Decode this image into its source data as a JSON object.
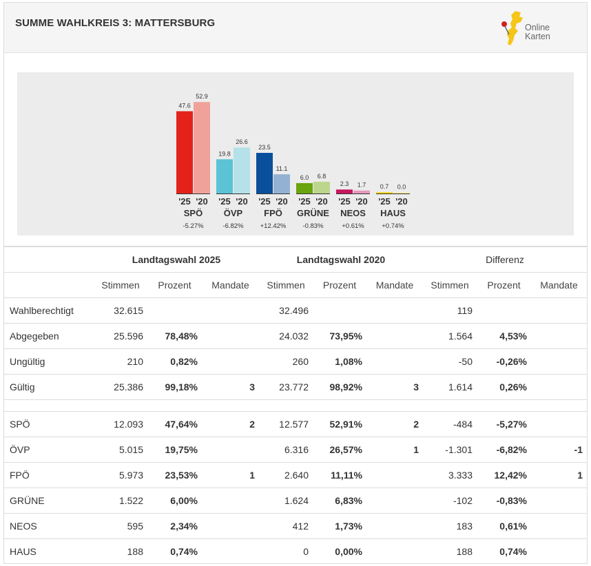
{
  "header": {
    "title": "SUMME WAHLKREIS 3: MATTERSBURG",
    "logo_line1": "Online",
    "logo_line2": "Karten",
    "logo_color": "#f5c518"
  },
  "chart_data": {
    "type": "bar",
    "title": "",
    "categories": [
      "SPÖ",
      "ÖVP",
      "FPÖ",
      "GRÜNE",
      "NEOS",
      "HAUS"
    ],
    "series": [
      {
        "name": "'25",
        "values": [
          47.6,
          19.8,
          23.5,
          6.0,
          2.3,
          0.7
        ]
      },
      {
        "name": "'20",
        "values": [
          52.9,
          26.6,
          11.1,
          6.8,
          1.7,
          0.0
        ]
      }
    ],
    "value_labels_25": [
      "47.6",
      "19.8",
      "23.5",
      "6.0",
      "2.3",
      "0.7"
    ],
    "value_labels_20": [
      "52.9",
      "26.6",
      "11.1",
      "6.8",
      "1.7",
      "0.0"
    ],
    "year_labels": [
      "'25",
      "'20"
    ],
    "diffs": [
      "-5.27%",
      "-6.82%",
      "+12.42%",
      "-0.83%",
      "+0.61%",
      "+0.74%"
    ],
    "colors_25": [
      "#e3231b",
      "#5bc3d3",
      "#0a4f9c",
      "#6aa40e",
      "#c8185c",
      "#f5d40a"
    ],
    "colors_20": [
      "#f0a29a",
      "#b5e1e8",
      "#93b2d3",
      "#bcd68c",
      "#e49bbb",
      "#f8e99b"
    ],
    "ylim": [
      0,
      60
    ],
    "xlabel": "",
    "ylabel": ""
  },
  "table": {
    "group_headers": [
      "Landtagswahl 2025",
      "Landtagswahl 2020",
      "Differenz"
    ],
    "sub_headers": [
      "Stimmen",
      "Prozent",
      "Mandate",
      "Stimmen",
      "Prozent",
      "Mandate",
      "Stimmen",
      "Prozent",
      "Mandate"
    ],
    "summary_rows": [
      {
        "label": "Wahlberechtigt",
        "cells": [
          "32.615",
          "",
          "",
          "32.496",
          "",
          "",
          "119",
          "",
          ""
        ]
      },
      {
        "label": "Abgegeben",
        "cells": [
          "25.596",
          "78,48%",
          "",
          "24.032",
          "73,95%",
          "",
          "1.564",
          "4,53%",
          ""
        ]
      },
      {
        "label": "Ungültig",
        "cells": [
          "210",
          "0,82%",
          "",
          "260",
          "1,08%",
          "",
          "-50",
          "-0,26%",
          ""
        ]
      },
      {
        "label": "Gültig",
        "cells": [
          "25.386",
          "99,18%",
          "3",
          "23.772",
          "98,92%",
          "3",
          "1.614",
          "0,26%",
          ""
        ]
      }
    ],
    "party_rows": [
      {
        "label": "SPÖ",
        "cells": [
          "12.093",
          "47,64%",
          "2",
          "12.577",
          "52,91%",
          "2",
          "-484",
          "-5,27%",
          ""
        ]
      },
      {
        "label": "ÖVP",
        "cells": [
          "5.015",
          "19,75%",
          "",
          "6.316",
          "26,57%",
          "1",
          "-1.301",
          "-6,82%",
          "-1"
        ]
      },
      {
        "label": "FPÖ",
        "cells": [
          "5.973",
          "23,53%",
          "1",
          "2.640",
          "11,11%",
          "",
          "3.333",
          "12,42%",
          "1"
        ]
      },
      {
        "label": "GRÜNE",
        "cells": [
          "1.522",
          "6,00%",
          "",
          "1.624",
          "6,83%",
          "",
          "-102",
          "-0,83%",
          ""
        ]
      },
      {
        "label": "NEOS",
        "cells": [
          "595",
          "2,34%",
          "",
          "412",
          "1,73%",
          "",
          "183",
          "0,61%",
          ""
        ]
      },
      {
        "label": "HAUS",
        "cells": [
          "188",
          "0,74%",
          "",
          "0",
          "0,00%",
          "",
          "188",
          "0,74%",
          ""
        ]
      }
    ]
  }
}
